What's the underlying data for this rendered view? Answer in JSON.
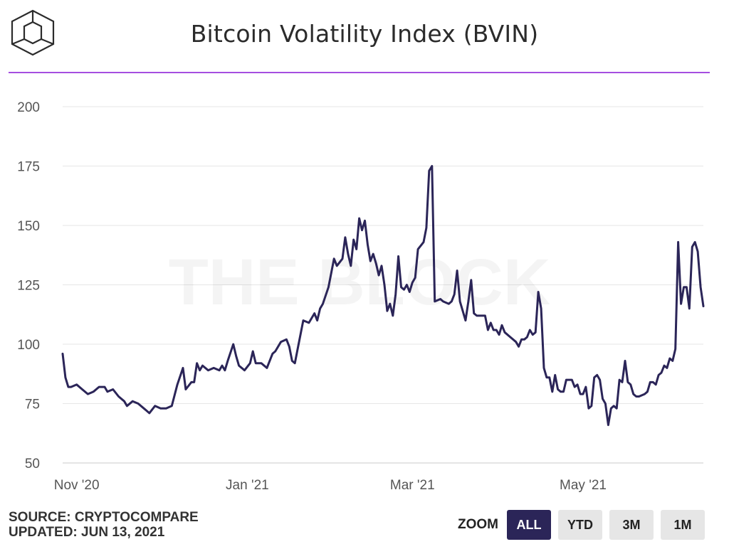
{
  "header": {
    "title": "Bitcoin Volatility Index (BVIN)",
    "accent_color": "#a54ee0"
  },
  "watermark": "THE BLOCK",
  "footer": {
    "source": "SOURCE: CRYPTOCOMPARE",
    "updated": "UPDATED: JUN 13, 2021"
  },
  "zoom": {
    "label": "ZOOM",
    "options": [
      "ALL",
      "YTD",
      "3M",
      "1M"
    ],
    "selected": "ALL"
  },
  "colors": {
    "line": "#2b2558",
    "grid": "#e6e6e6",
    "axis_text": "#555555",
    "button_active": "#2b2558",
    "button_inactive": "#e6e6e6"
  },
  "chart_data": {
    "type": "line",
    "title": "Bitcoin Volatility Index (BVIN)",
    "xlabel": "",
    "ylabel": "",
    "ylim": [
      50,
      200
    ],
    "yticks": [
      50,
      75,
      100,
      125,
      150,
      175,
      200
    ],
    "grid": true,
    "x_range": [
      "2020-10-27",
      "2021-06-13"
    ],
    "x_tick_labels": [
      {
        "date": "2020-11-01",
        "label": "Nov '20"
      },
      {
        "date": "2021-01-01",
        "label": "Jan '21"
      },
      {
        "date": "2021-03-01",
        "label": "Mar '21"
      },
      {
        "date": "2021-05-01",
        "label": "May '21"
      }
    ],
    "series": [
      {
        "values": [
          [
            "2020-10-27",
            96
          ],
          [
            "2020-10-28",
            86
          ],
          [
            "2020-10-29",
            82
          ],
          [
            "2020-10-30",
            82
          ],
          [
            "2020-11-01",
            83
          ],
          [
            "2020-11-03",
            81
          ],
          [
            "2020-11-05",
            79
          ],
          [
            "2020-11-07",
            80
          ],
          [
            "2020-11-09",
            82
          ],
          [
            "2020-11-11",
            82
          ],
          [
            "2020-11-12",
            80
          ],
          [
            "2020-11-14",
            81
          ],
          [
            "2020-11-16",
            78
          ],
          [
            "2020-11-18",
            76
          ],
          [
            "2020-11-19",
            74
          ],
          [
            "2020-11-21",
            76
          ],
          [
            "2020-11-23",
            75
          ],
          [
            "2020-11-25",
            73
          ],
          [
            "2020-11-26",
            72
          ],
          [
            "2020-11-27",
            71
          ],
          [
            "2020-11-29",
            74
          ],
          [
            "2020-12-01",
            73
          ],
          [
            "2020-12-03",
            73
          ],
          [
            "2020-12-05",
            74
          ],
          [
            "2020-12-07",
            83
          ],
          [
            "2020-12-09",
            90
          ],
          [
            "2020-12-10",
            81
          ],
          [
            "2020-12-12",
            84
          ],
          [
            "2020-12-13",
            84
          ],
          [
            "2020-12-14",
            92
          ],
          [
            "2020-12-15",
            89
          ],
          [
            "2020-12-16",
            91
          ],
          [
            "2020-12-18",
            89
          ],
          [
            "2020-12-20",
            90
          ],
          [
            "2020-12-22",
            89
          ],
          [
            "2020-12-23",
            91
          ],
          [
            "2020-12-24",
            89
          ],
          [
            "2020-12-25",
            93
          ],
          [
            "2020-12-27",
            100
          ],
          [
            "2020-12-28",
            95
          ],
          [
            "2020-12-29",
            91
          ],
          [
            "2020-12-31",
            89
          ],
          [
            "2021-01-02",
            92
          ],
          [
            "2021-01-03",
            97
          ],
          [
            "2021-01-04",
            92
          ],
          [
            "2021-01-06",
            92
          ],
          [
            "2021-01-08",
            90
          ],
          [
            "2021-01-10",
            96
          ],
          [
            "2021-01-11",
            97
          ],
          [
            "2021-01-13",
            101
          ],
          [
            "2021-01-15",
            102
          ],
          [
            "2021-01-16",
            99
          ],
          [
            "2021-01-17",
            93
          ],
          [
            "2021-01-18",
            92
          ],
          [
            "2021-01-19",
            98
          ],
          [
            "2021-01-21",
            110
          ],
          [
            "2021-01-23",
            109
          ],
          [
            "2021-01-25",
            113
          ],
          [
            "2021-01-26",
            110
          ],
          [
            "2021-01-27",
            115
          ],
          [
            "2021-01-28",
            117
          ],
          [
            "2021-01-30",
            124
          ],
          [
            "2021-01-31",
            130
          ],
          [
            "2021-02-01",
            136
          ],
          [
            "2021-02-02",
            133
          ],
          [
            "2021-02-04",
            136
          ],
          [
            "2021-02-05",
            145
          ],
          [
            "2021-02-06",
            138
          ],
          [
            "2021-02-07",
            133
          ],
          [
            "2021-02-08",
            144
          ],
          [
            "2021-02-09",
            140
          ],
          [
            "2021-02-10",
            153
          ],
          [
            "2021-02-11",
            148
          ],
          [
            "2021-02-12",
            152
          ],
          [
            "2021-02-13",
            142
          ],
          [
            "2021-02-14",
            135
          ],
          [
            "2021-02-15",
            138
          ],
          [
            "2021-02-16",
            134
          ],
          [
            "2021-02-17",
            129
          ],
          [
            "2021-02-18",
            133
          ],
          [
            "2021-02-19",
            125
          ],
          [
            "2021-02-20",
            114
          ],
          [
            "2021-02-21",
            117
          ],
          [
            "2021-02-22",
            112
          ],
          [
            "2021-02-23",
            121
          ],
          [
            "2021-02-24",
            137
          ],
          [
            "2021-02-25",
            124
          ],
          [
            "2021-02-26",
            123
          ],
          [
            "2021-02-27",
            125
          ],
          [
            "2021-02-28",
            122
          ],
          [
            "2021-03-01",
            126
          ],
          [
            "2021-03-02",
            128
          ],
          [
            "2021-03-03",
            140
          ],
          [
            "2021-03-05",
            143
          ],
          [
            "2021-03-06",
            149
          ],
          [
            "2021-03-07",
            173
          ],
          [
            "2021-03-08",
            175
          ],
          [
            "2021-03-09",
            118
          ],
          [
            "2021-03-11",
            119
          ],
          [
            "2021-03-12",
            118
          ],
          [
            "2021-03-14",
            117
          ],
          [
            "2021-03-15",
            118
          ],
          [
            "2021-03-16",
            121
          ],
          [
            "2021-03-17",
            131
          ],
          [
            "2021-03-18",
            118
          ],
          [
            "2021-03-19",
            114
          ],
          [
            "2021-03-20",
            110
          ],
          [
            "2021-03-21",
            118
          ],
          [
            "2021-03-22",
            127
          ],
          [
            "2021-03-23",
            113
          ],
          [
            "2021-03-24",
            112
          ],
          [
            "2021-03-26",
            112
          ],
          [
            "2021-03-27",
            112
          ],
          [
            "2021-03-28",
            106
          ],
          [
            "2021-03-29",
            109
          ],
          [
            "2021-03-30",
            106
          ],
          [
            "2021-03-31",
            106
          ],
          [
            "2021-04-01",
            104
          ],
          [
            "2021-04-02",
            108
          ],
          [
            "2021-04-03",
            105
          ],
          [
            "2021-04-05",
            103
          ],
          [
            "2021-04-07",
            101
          ],
          [
            "2021-04-08",
            99
          ],
          [
            "2021-04-09",
            102
          ],
          [
            "2021-04-10",
            102
          ],
          [
            "2021-04-11",
            103
          ],
          [
            "2021-04-12",
            106
          ],
          [
            "2021-04-13",
            104
          ],
          [
            "2021-04-14",
            105
          ],
          [
            "2021-04-15",
            122
          ],
          [
            "2021-04-16",
            115
          ],
          [
            "2021-04-17",
            90
          ],
          [
            "2021-04-18",
            86
          ],
          [
            "2021-04-19",
            86
          ],
          [
            "2021-04-20",
            80
          ],
          [
            "2021-04-21",
            87
          ],
          [
            "2021-04-22",
            81
          ],
          [
            "2021-04-23",
            80
          ],
          [
            "2021-04-24",
            80
          ],
          [
            "2021-04-25",
            85
          ],
          [
            "2021-04-27",
            85
          ],
          [
            "2021-04-28",
            82
          ],
          [
            "2021-04-29",
            83
          ],
          [
            "2021-04-30",
            79
          ],
          [
            "2021-05-01",
            79
          ],
          [
            "2021-05-02",
            82
          ],
          [
            "2021-05-03",
            73
          ],
          [
            "2021-05-04",
            74
          ],
          [
            "2021-05-05",
            86
          ],
          [
            "2021-05-06",
            87
          ],
          [
            "2021-05-07",
            85
          ],
          [
            "2021-05-08",
            77
          ],
          [
            "2021-05-09",
            75
          ],
          [
            "2021-05-10",
            66
          ],
          [
            "2021-05-11",
            73
          ],
          [
            "2021-05-12",
            74
          ],
          [
            "2021-05-13",
            73
          ],
          [
            "2021-05-14",
            85
          ],
          [
            "2021-05-15",
            84
          ],
          [
            "2021-05-16",
            93
          ],
          [
            "2021-05-17",
            84
          ],
          [
            "2021-05-18",
            83
          ],
          [
            "2021-05-19",
            79
          ],
          [
            "2021-05-20",
            78
          ],
          [
            "2021-05-21",
            78
          ],
          [
            "2021-05-23",
            79
          ],
          [
            "2021-05-24",
            80
          ],
          [
            "2021-05-25",
            84
          ],
          [
            "2021-05-26",
            84
          ],
          [
            "2021-05-27",
            83
          ],
          [
            "2021-05-28",
            87
          ],
          [
            "2021-05-29",
            88
          ],
          [
            "2021-05-30",
            91
          ],
          [
            "2021-05-31",
            90
          ],
          [
            "2021-06-01",
            94
          ],
          [
            "2021-06-02",
            93
          ],
          [
            "2021-06-03",
            98
          ],
          [
            "2021-06-04",
            143
          ],
          [
            "2021-06-05",
            117
          ],
          [
            "2021-06-06",
            124
          ],
          [
            "2021-06-07",
            124
          ],
          [
            "2021-06-08",
            115
          ],
          [
            "2021-06-09",
            141
          ],
          [
            "2021-06-10",
            143
          ],
          [
            "2021-06-11",
            139
          ],
          [
            "2021-06-12",
            124
          ],
          [
            "2021-06-13",
            116
          ]
        ]
      }
    ]
  }
}
